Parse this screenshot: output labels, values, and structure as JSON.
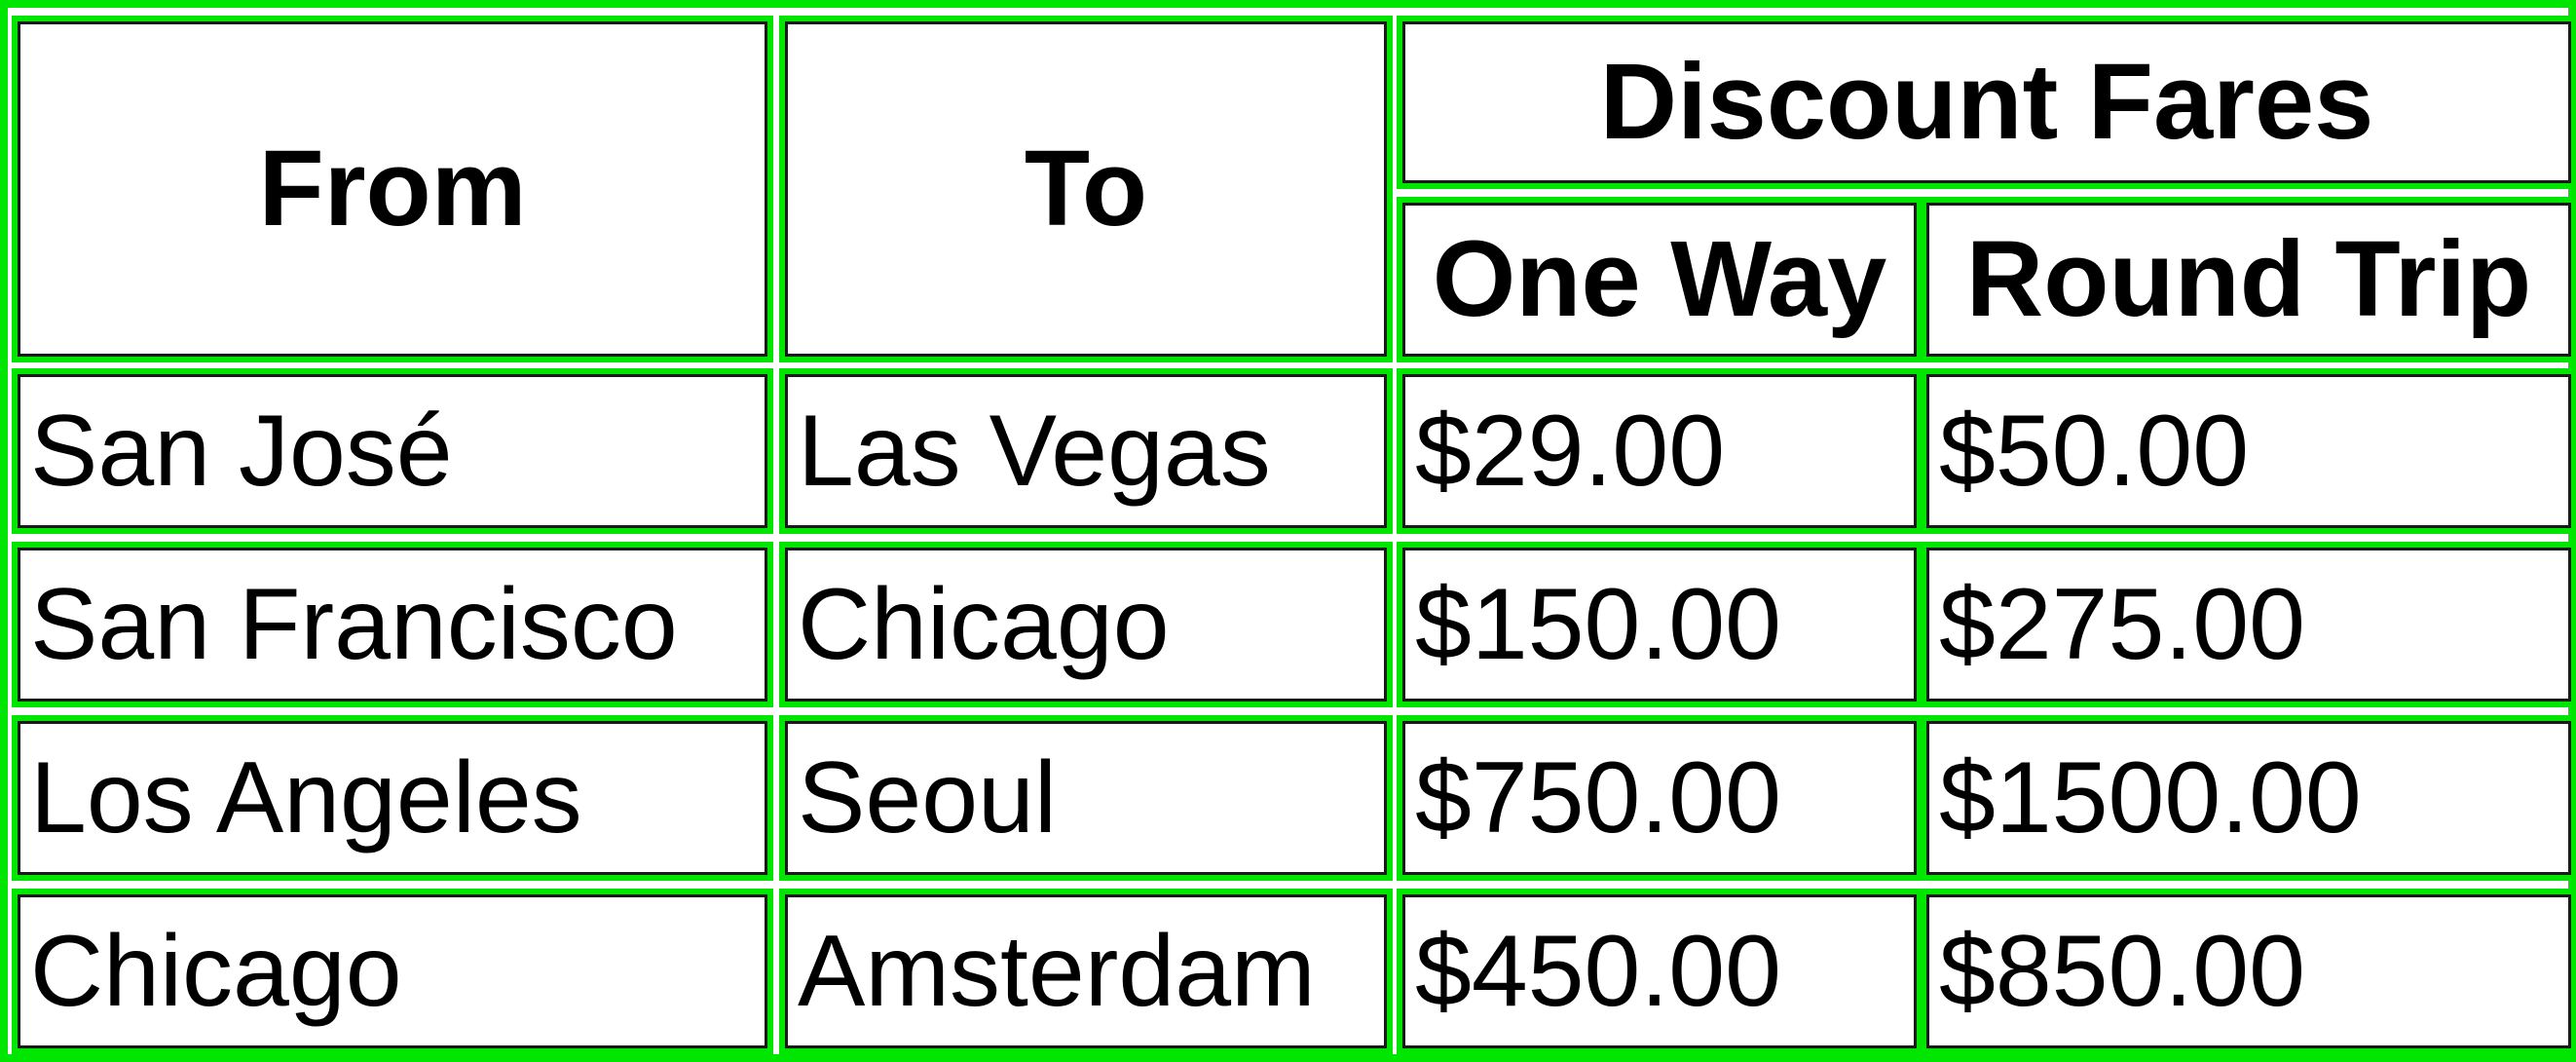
{
  "table": {
    "headers": {
      "from": "From",
      "to": "To",
      "group": "Discount Fares",
      "one_way": "One Way",
      "round_trip": "Round Trip"
    },
    "rows": [
      {
        "from": "San José",
        "to": "Las Vegas",
        "one_way": "$29.00",
        "round_trip": "$50.00"
      },
      {
        "from": "San Francisco",
        "to": "Chicago",
        "one_way": "$150.00",
        "round_trip": "$275.00"
      },
      {
        "from": "Los Angeles",
        "to": "Seoul",
        "one_way": "$750.00",
        "round_trip": "$1500.00"
      },
      {
        "from": "Chicago",
        "to": "Amsterdam",
        "one_way": "$450.00",
        "round_trip": "$850.00"
      }
    ]
  },
  "colors": {
    "outline": "#00e600",
    "border": "#1a1a1a",
    "text": "#000000",
    "background": "#ffffff"
  }
}
